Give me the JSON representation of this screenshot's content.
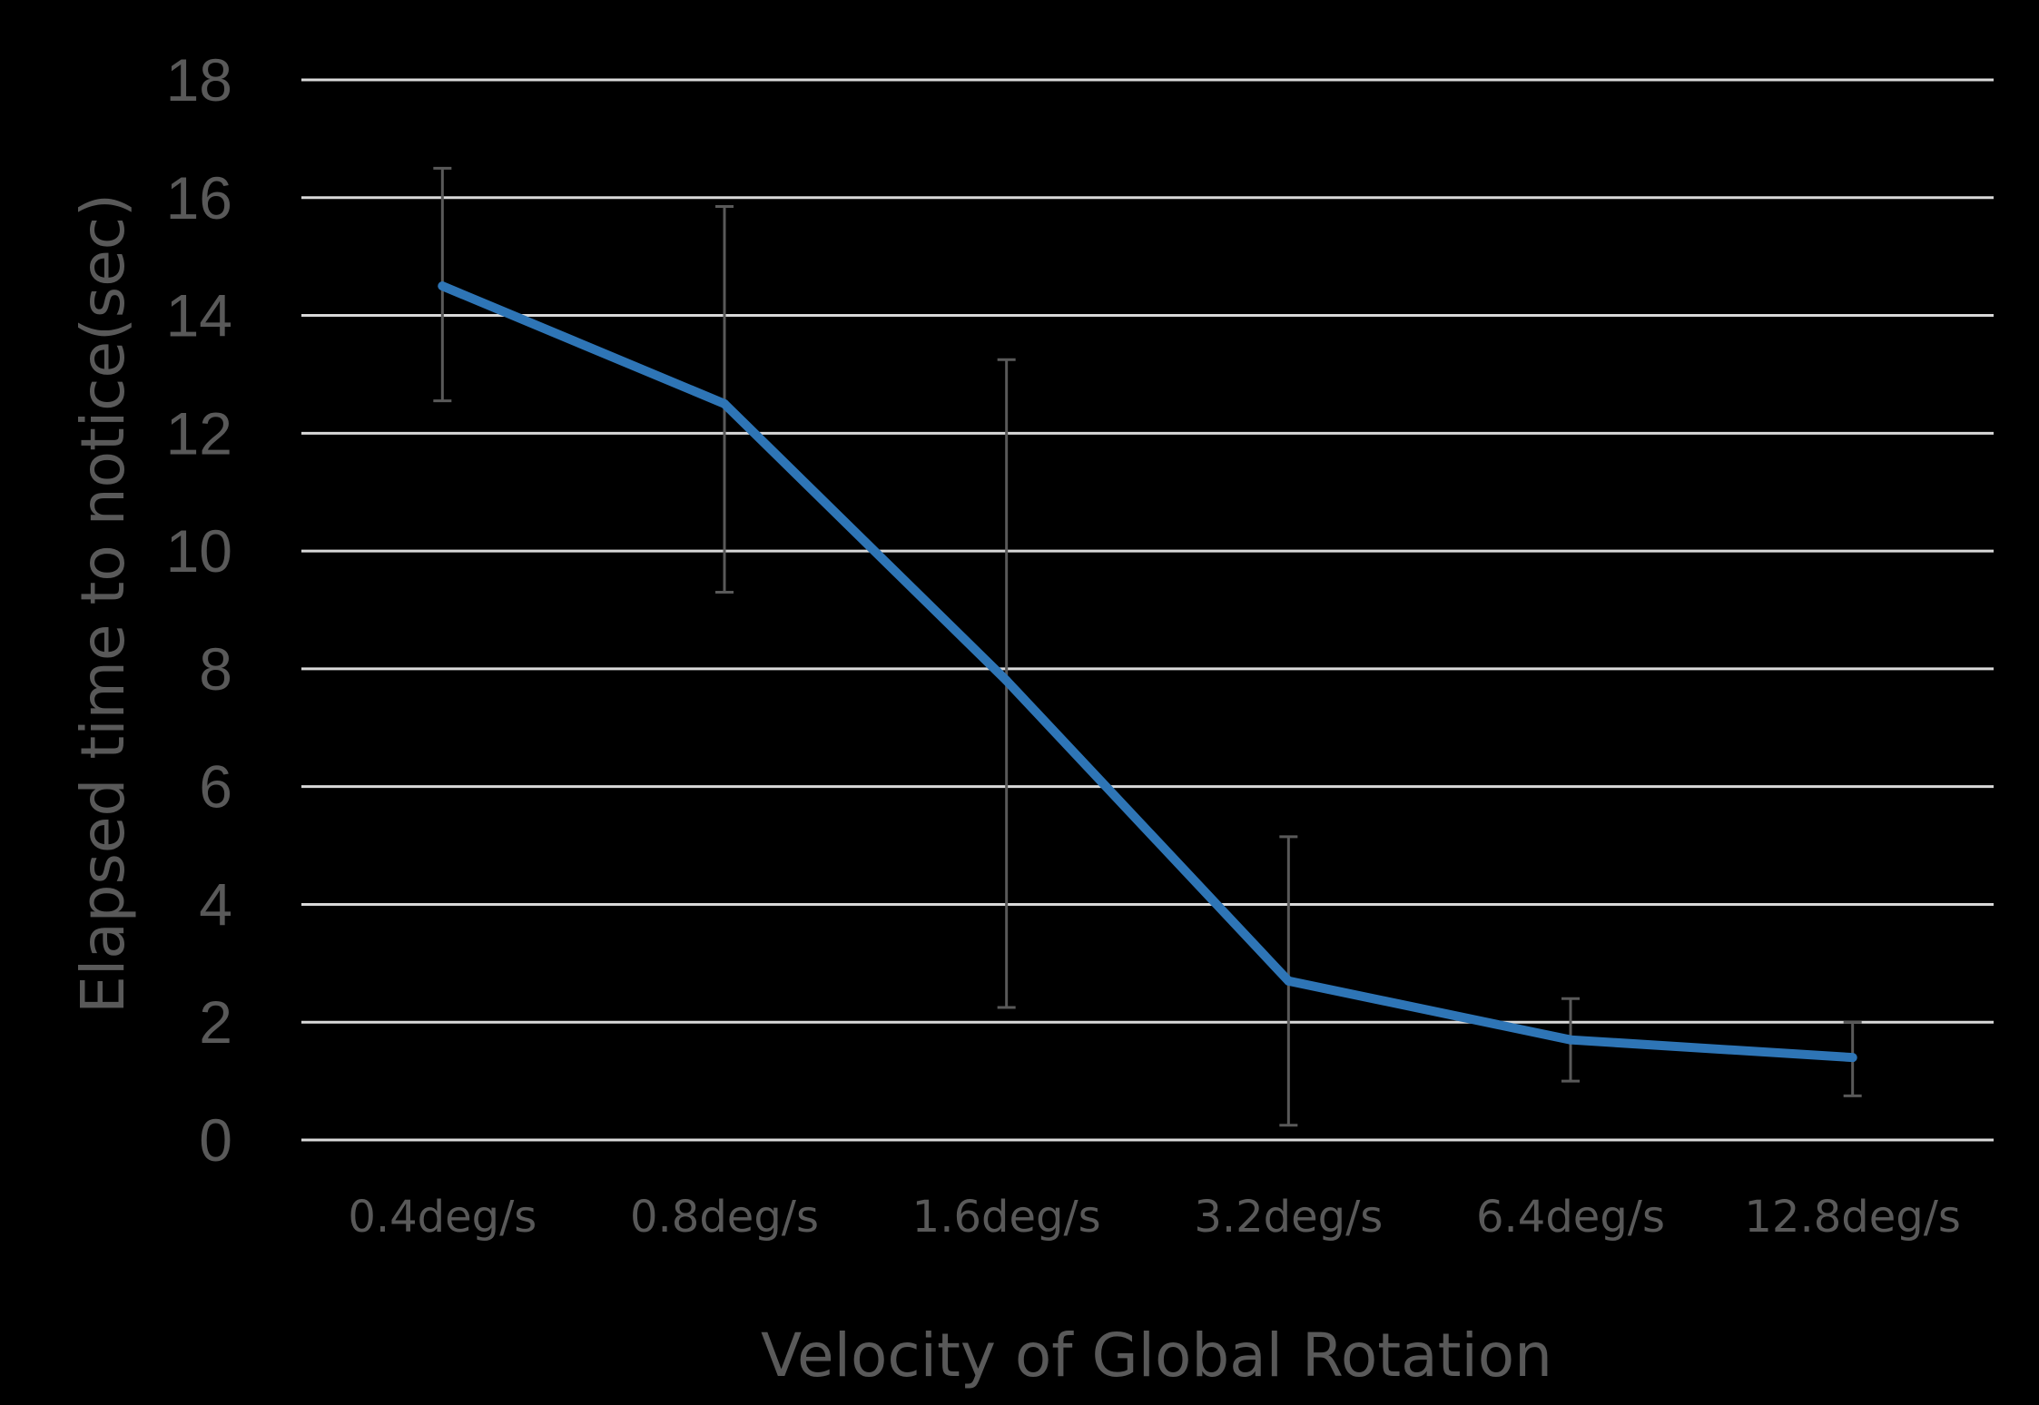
{
  "chart_data": {
    "type": "line",
    "categories": [
      "0.4deg/s",
      "0.8deg/s",
      "1.6deg/s",
      "3.2deg/s",
      "6.4deg/s",
      "12.8deg/s"
    ],
    "series": [
      {
        "values": [
          14.5,
          12.5,
          7.8,
          2.7,
          1.7,
          1.4
        ],
        "error_upper": [
          16.5,
          15.85,
          13.25,
          5.15,
          2.4,
          2.0
        ],
        "error_lower": [
          12.55,
          9.3,
          2.25,
          0.25,
          1.0,
          0.75
        ]
      }
    ],
    "xlabel": "Velocity of Global Rotation",
    "ylabel": "Elapsed time to notice(sec)",
    "ylim": [
      0,
      18
    ],
    "yticks": [
      "0",
      "2",
      "4",
      "6",
      "8",
      "10",
      "12",
      "14",
      "16",
      "18"
    ],
    "grid": true,
    "legend": "none",
    "colors": {
      "background": "#000000",
      "line": "#2e75b6",
      "gridline": "#d9d9d9",
      "text": "#595959",
      "errorbar": "#595959"
    }
  }
}
